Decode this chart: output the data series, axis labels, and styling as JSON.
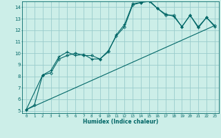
{
  "xlabel": "Humidex (Indice chaleur)",
  "background_color": "#cceee8",
  "line_color": "#006666",
  "grid_color": "#99cccc",
  "xlim": [
    -0.5,
    23.5
  ],
  "ylim": [
    4.8,
    14.5
  ],
  "xticks": [
    0,
    1,
    2,
    3,
    4,
    5,
    6,
    7,
    8,
    9,
    10,
    11,
    12,
    13,
    14,
    15,
    16,
    17,
    18,
    19,
    20,
    21,
    22,
    23
  ],
  "yticks": [
    5,
    6,
    7,
    8,
    9,
    10,
    11,
    12,
    13,
    14
  ],
  "series1": {
    "x": [
      0,
      1,
      2,
      3,
      4,
      5,
      6,
      7,
      8,
      9,
      10,
      11,
      12,
      13,
      14,
      15,
      16,
      17,
      18,
      19,
      20,
      21,
      22,
      23
    ],
    "y": [
      5.1,
      5.5,
      8.1,
      8.3,
      9.5,
      9.8,
      10.0,
      9.8,
      9.8,
      9.5,
      10.2,
      11.5,
      12.3,
      14.2,
      14.4,
      14.6,
      13.9,
      13.3,
      13.3,
      12.3,
      13.3,
      12.3,
      13.1,
      12.4
    ]
  },
  "series2": {
    "x": [
      0,
      2,
      3,
      4,
      5,
      6,
      7,
      8,
      9,
      10,
      11,
      12,
      13,
      14,
      15,
      16,
      17,
      18,
      19,
      20,
      21,
      22,
      23
    ],
    "y": [
      5.1,
      8.1,
      8.5,
      9.7,
      10.1,
      9.8,
      9.9,
      9.5,
      9.5,
      10.1,
      11.6,
      12.5,
      14.3,
      14.4,
      14.5,
      13.9,
      13.4,
      13.2,
      12.3,
      13.3,
      12.2,
      13.1,
      12.3
    ]
  },
  "series3": {
    "x": [
      0,
      23
    ],
    "y": [
      5.1,
      12.4
    ]
  }
}
